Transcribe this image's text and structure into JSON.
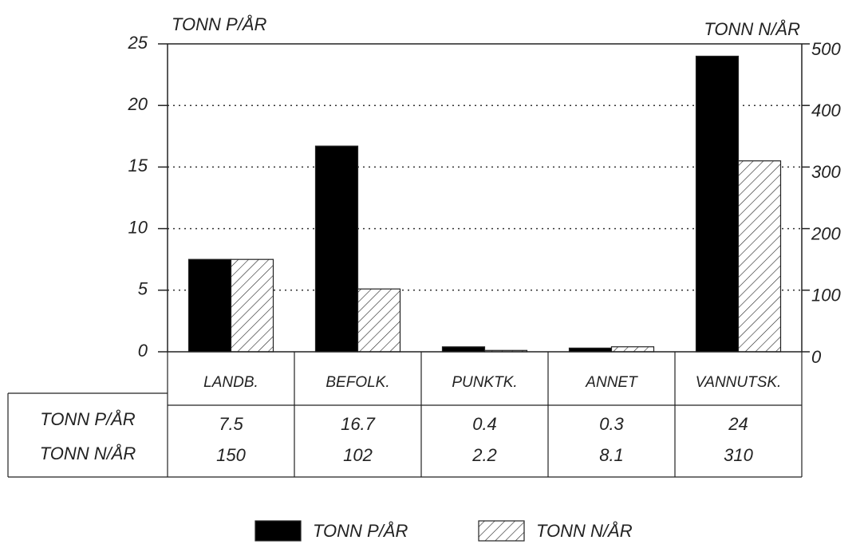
{
  "chart_data": {
    "type": "bar",
    "ylabel": "TONN P/ÅR",
    "y2label": "TONN N/ÅR",
    "categories": [
      "LANDB.",
      "BEFOLK.",
      "PUNKTK.",
      "ANNET",
      "VANNUTSK."
    ],
    "series": [
      {
        "name": "TONN P/ÅR",
        "color": "#000000",
        "values": [
          7.5,
          16.7,
          0.4,
          0.3,
          24
        ]
      },
      {
        "name": "TONN N/ÅR",
        "color": "hatch",
        "axis": "y2",
        "values": [
          150,
          102,
          2.2,
          8.1,
          310
        ]
      }
    ],
    "ylim": [
      0,
      25
    ],
    "yticks": [
      0,
      5,
      10,
      15,
      20,
      25
    ],
    "y2lim": [
      0,
      500
    ],
    "y2ticks": [
      0,
      100,
      200,
      300,
      400,
      500
    ],
    "grid": true,
    "legend": "bottom",
    "table": true
  }
}
